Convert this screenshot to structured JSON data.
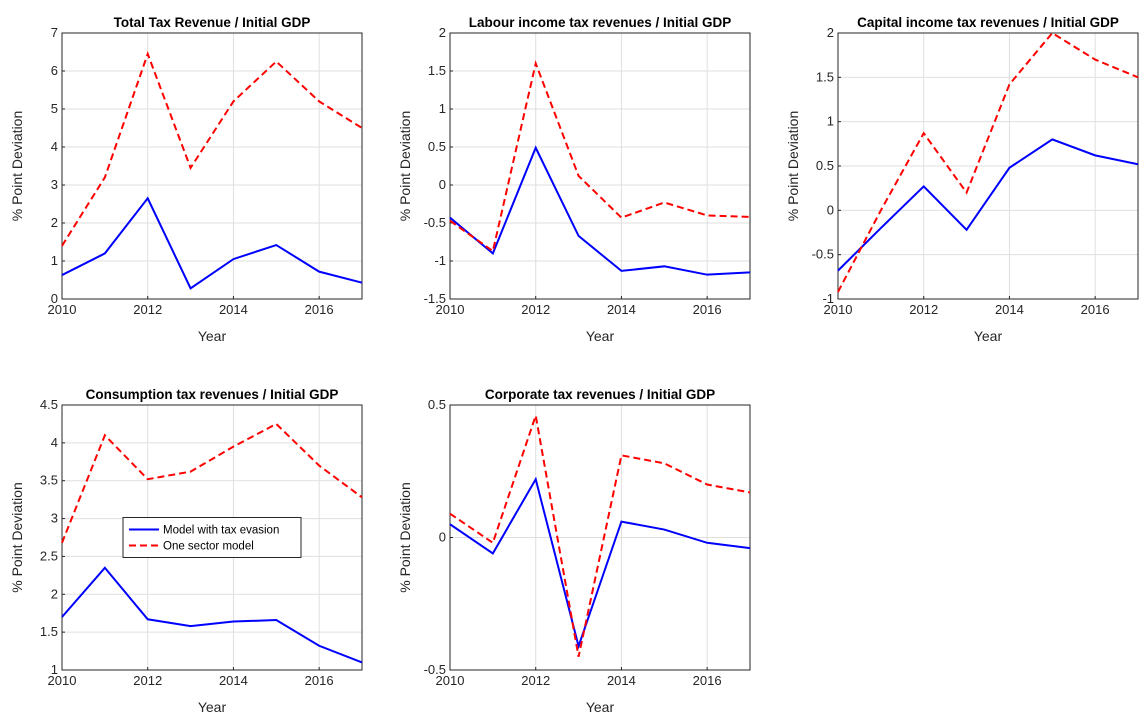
{
  "chart_data": [
    {
      "type": "line",
      "title": "Total Tax Revenue / Initial GDP",
      "xlabel": "Year",
      "ylabel": "% Point Deviation",
      "x": [
        2010,
        2011,
        2012,
        2013,
        2014,
        2015,
        2016,
        2017
      ],
      "xlim": [
        2010,
        2017
      ],
      "xticks": [
        2010,
        2012,
        2014,
        2016
      ],
      "ylim": [
        0,
        7
      ],
      "yticks": [
        0,
        1,
        2,
        3,
        4,
        5,
        6,
        7
      ],
      "grid": true,
      "series": [
        {
          "color": "#0000ff",
          "dashed": false,
          "values": [
            0.63,
            1.2,
            2.65,
            0.28,
            1.05,
            1.42,
            0.72,
            0.43
          ]
        },
        {
          "color": "#ff0000",
          "dashed": true,
          "values": [
            1.4,
            3.2,
            6.45,
            3.45,
            5.2,
            6.25,
            5.2,
            4.5
          ]
        }
      ]
    },
    {
      "type": "line",
      "title": "Labour income tax revenues / Initial GDP",
      "xlabel": "Year",
      "ylabel": "% Point Deviation",
      "x": [
        2010,
        2011,
        2012,
        2013,
        2014,
        2015,
        2016,
        2017
      ],
      "xlim": [
        2010,
        2017
      ],
      "xticks": [
        2010,
        2012,
        2014,
        2016
      ],
      "ylim": [
        -1.5,
        2
      ],
      "yticks": [
        -1.5,
        -1,
        -0.5,
        0,
        0.5,
        1,
        1.5,
        2
      ],
      "grid": true,
      "series": [
        {
          "color": "#0000ff",
          "dashed": false,
          "values": [
            -0.43,
            -0.9,
            0.49,
            -0.67,
            -1.13,
            -1.07,
            -1.18,
            -1.15
          ]
        },
        {
          "color": "#ff0000",
          "dashed": true,
          "values": [
            -0.47,
            -0.87,
            1.6,
            0.12,
            -0.43,
            -0.23,
            -0.4,
            -0.42
          ]
        }
      ]
    },
    {
      "type": "line",
      "title": "Capital income tax revenues / Initial GDP",
      "xlabel": "Year",
      "ylabel": "% Point Deviation",
      "x": [
        2010,
        2011,
        2012,
        2013,
        2014,
        2015,
        2016,
        2017
      ],
      "xlim": [
        2010,
        2017
      ],
      "xticks": [
        2010,
        2012,
        2014,
        2016
      ],
      "ylim": [
        -1,
        2
      ],
      "yticks": [
        -1,
        -0.5,
        0,
        0.5,
        1,
        1.5,
        2
      ],
      "grid": true,
      "series": [
        {
          "color": "#0000ff",
          "dashed": false,
          "values": [
            -0.68,
            -0.2,
            0.27,
            -0.22,
            0.48,
            0.8,
            0.62,
            0.52
          ]
        },
        {
          "color": "#ff0000",
          "dashed": true,
          "values": [
            -0.92,
            0.0,
            0.87,
            0.2,
            1.42,
            2.0,
            1.7,
            1.5
          ]
        }
      ]
    },
    {
      "type": "line",
      "title": "Consumption tax revenues / Initial GDP",
      "xlabel": "Year",
      "ylabel": "% Point Deviation",
      "x": [
        2010,
        2011,
        2012,
        2013,
        2014,
        2015,
        2016,
        2017
      ],
      "xlim": [
        2010,
        2017
      ],
      "xticks": [
        2010,
        2012,
        2014,
        2016
      ],
      "ylim": [
        1,
        4.5
      ],
      "yticks": [
        1,
        1.5,
        2,
        2.5,
        3,
        3.5,
        4,
        4.5
      ],
      "grid": true,
      "legend": "center",
      "series": [
        {
          "name": "Model with tax evasion",
          "color": "#0000ff",
          "dashed": false,
          "values": [
            1.7,
            2.35,
            1.67,
            1.58,
            1.64,
            1.66,
            1.32,
            1.1
          ]
        },
        {
          "name": "One sector model",
          "color": "#ff0000",
          "dashed": true,
          "values": [
            2.68,
            4.1,
            3.52,
            3.62,
            3.95,
            4.25,
            3.7,
            3.28
          ]
        }
      ]
    },
    {
      "type": "line",
      "title": "Corporate tax revenues / Initial GDP",
      "xlabel": "Year",
      "ylabel": "% Point Deviation",
      "x": [
        2010,
        2011,
        2012,
        2013,
        2014,
        2015,
        2016,
        2017
      ],
      "xlim": [
        2010,
        2017
      ],
      "xticks": [
        2010,
        2012,
        2014,
        2016
      ],
      "ylim": [
        -0.5,
        0.5
      ],
      "yticks": [
        -0.5,
        0,
        0.5
      ],
      "grid": true,
      "series": [
        {
          "color": "#0000ff",
          "dashed": false,
          "values": [
            0.05,
            -0.06,
            0.22,
            -0.41,
            0.06,
            0.03,
            -0.02,
            -0.04
          ]
        },
        {
          "color": "#ff0000",
          "dashed": true,
          "values": [
            0.09,
            -0.02,
            0.46,
            -0.45,
            0.31,
            0.28,
            0.2,
            0.17
          ]
        }
      ]
    }
  ]
}
